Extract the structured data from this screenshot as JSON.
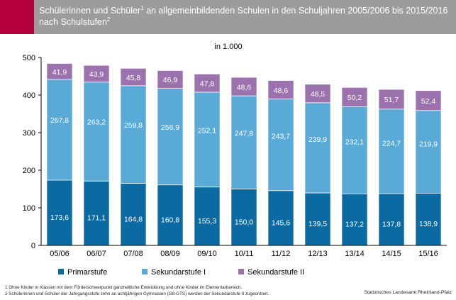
{
  "header": {
    "title_line1_a": "Schülerinnen und Schüler",
    "title_sup1": "1",
    "title_line1_b": " an allgemeinbildenden Schulen in den Schuljahren 2005/2006 bis 2015/2016",
    "title_line2": "nach Schulstufen",
    "title_sup2": "2"
  },
  "colors": {
    "header_accent": "#b3003c",
    "header_band": "#9c9c9c"
  },
  "chart_data": {
    "type": "bar",
    "stacked": true,
    "unit_label": "in 1.000",
    "categories": [
      "05/06",
      "06/07",
      "07/08",
      "08/09",
      "09/10",
      "10/11",
      "11/12",
      "12/13",
      "13/14",
      "14/15",
      "15/16"
    ],
    "series": [
      {
        "name": "Primarstufe",
        "color": "#0a6aa1",
        "values": [
          173.6,
          171.1,
          164.8,
          160.8,
          155.3,
          150.0,
          145.6,
          139.5,
          137.2,
          137.8,
          138.9
        ],
        "labels": [
          "173,6",
          "171,1",
          "164,8",
          "160,8",
          "155,3",
          "150,0",
          "145,6",
          "139,5",
          "137,2",
          "137,8",
          "138,9"
        ]
      },
      {
        "name": "Sekundarstufe I",
        "color": "#5aaad8",
        "values": [
          267.8,
          263.2,
          259.8,
          256.9,
          252.1,
          247.8,
          243.7,
          239.9,
          232.1,
          224.7,
          219.9
        ],
        "labels": [
          "267,8",
          "263,2",
          "259,8",
          "256,9",
          "252,1",
          "247,8",
          "243,7",
          "239,9",
          "232,1",
          "224,7",
          "219,9"
        ]
      },
      {
        "name": "Sekundarstufe II",
        "color": "#9b72ad",
        "values": [
          41.9,
          43.9,
          45.8,
          46.9,
          47.8,
          48.6,
          48.6,
          48.5,
          50.2,
          51.7,
          52.4
        ],
        "labels": [
          "41,9",
          "43,9",
          "45,8",
          "46,9",
          "47,8",
          "48,6",
          "48,6",
          "48,5",
          "50,2",
          "51,7",
          "52,4"
        ]
      }
    ],
    "ylim": [
      0,
      500
    ],
    "yticks": [
      0,
      100,
      200,
      300,
      400,
      500
    ],
    "grid": false,
    "legend_position": "bottom"
  },
  "footnotes": [
    "1 Ohne Kinder in Klassen mit dem Förderschwerpunkt ganzheitliche Entwicklung und ohne Kinder im Elementarbereich.",
    "2 Schülerinnen und Schüler der Jahrgangsstufe zehn an achtjährigen Gymnasien (G8-GTS) werden der Sekundarstufe II zugeordnet."
  ],
  "source": "Statistisches Landesamt Rheinland-Pfalz"
}
